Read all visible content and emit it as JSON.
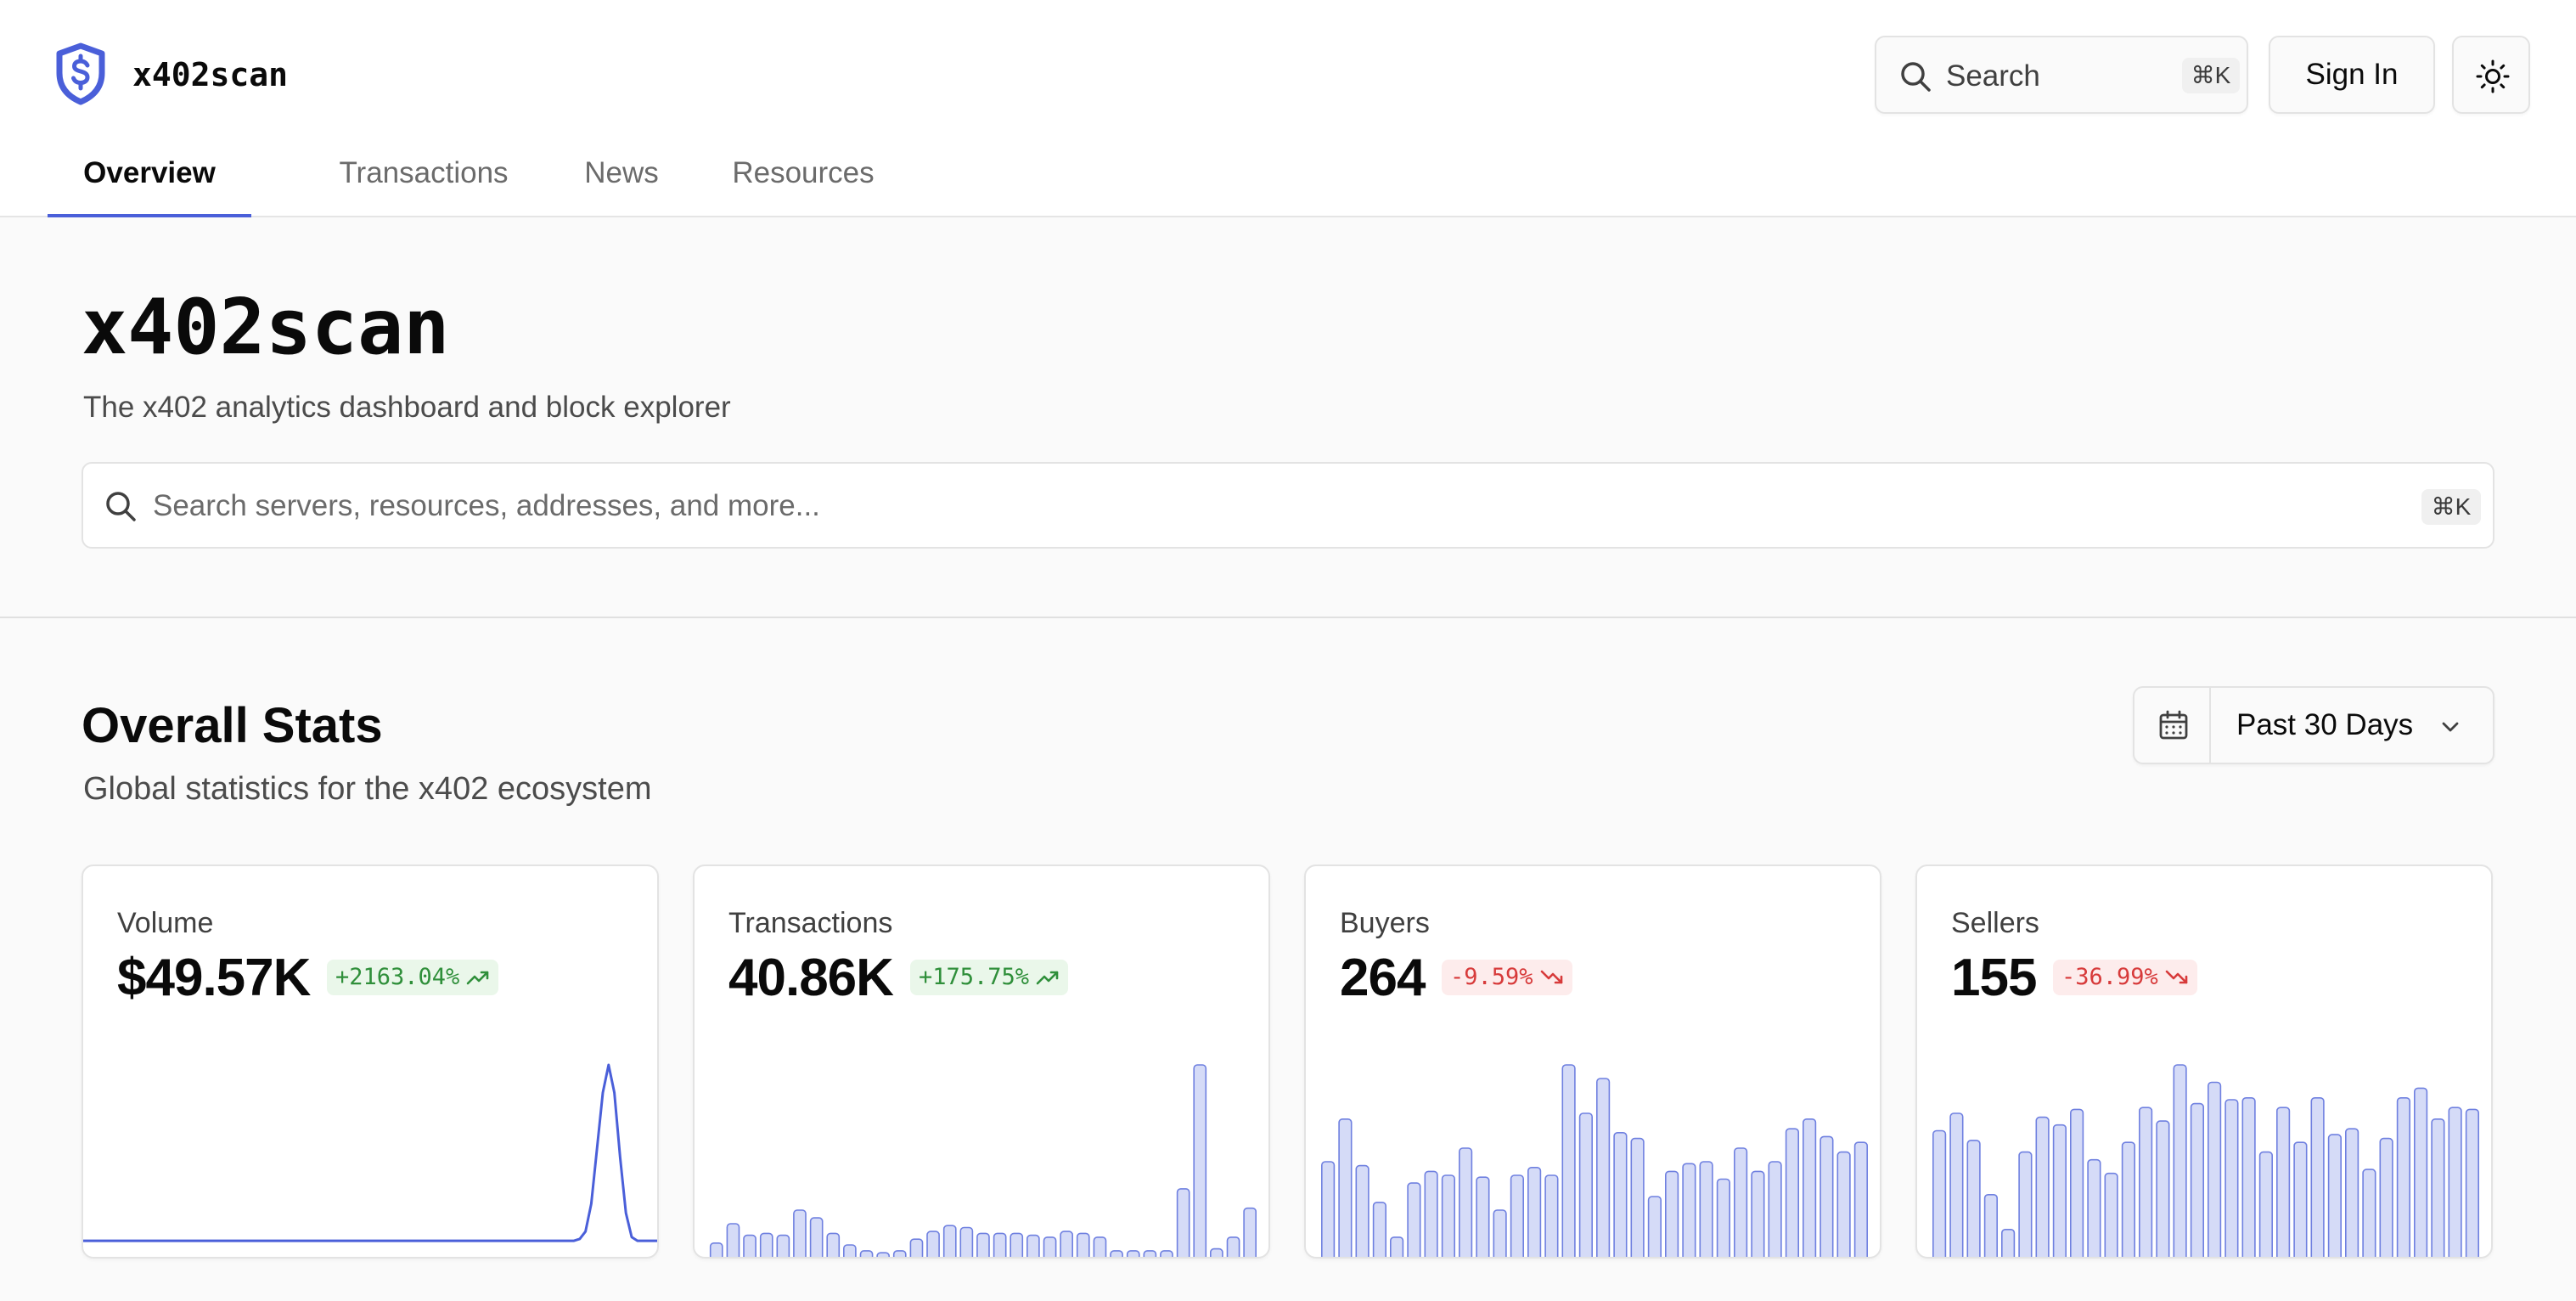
{
  "header": {
    "brand": "x402scan",
    "search_label": "Search",
    "search_shortcut": "⌘K",
    "sign_in": "Sign In",
    "icons": [
      "shield-dollar-icon",
      "search-icon",
      "sun-icon"
    ]
  },
  "nav": {
    "tabs": [
      {
        "label": "Overview",
        "active": true
      },
      {
        "label": "Transactions",
        "active": false
      },
      {
        "label": "News",
        "active": false
      },
      {
        "label": "Resources",
        "active": false
      }
    ]
  },
  "hero": {
    "title": "x402scan",
    "subtitle": "The x402 analytics dashboard and block explorer",
    "search_placeholder": "Search servers, resources, addresses, and more...",
    "search_shortcut": "⌘K"
  },
  "stats": {
    "title": "Overall Stats",
    "subtitle": "Global statistics for the x402 ecosystem",
    "range": "Past 30 Days",
    "cards": [
      {
        "label": "Volume",
        "value": "$49.57K",
        "change": "+2163.04%",
        "trend": "up"
      },
      {
        "label": "Transactions",
        "value": "40.86K",
        "change": "+175.75%",
        "trend": "up"
      },
      {
        "label": "Buyers",
        "value": "264",
        "change": "-9.59%",
        "trend": "down"
      },
      {
        "label": "Sellers",
        "value": "155",
        "change": "-36.99%",
        "trend": "down"
      }
    ]
  },
  "colors": {
    "accent": "#4a5fd9",
    "bar_fill": "#d5dbf7",
    "bar_stroke": "#6f80e0",
    "positive": "#2f8f3a",
    "negative": "#d73a3a"
  },
  "chart_data": [
    {
      "type": "line",
      "series": [
        {
          "values": [
            0.05,
            0.05,
            0.05,
            0.05,
            0.05,
            0.05,
            0.05,
            0.05,
            0.05,
            0.05,
            0.05,
            0.05,
            0.05,
            0.05,
            0.05,
            0.05,
            0.05,
            0.05,
            0.05,
            0.05,
            0.05,
            0.05,
            0.05,
            0.05,
            0.05,
            0.05,
            0.05,
            0.05,
            0.05,
            0.05,
            0.05,
            0.05,
            0.05,
            0.05,
            0.05,
            0.05,
            0.05,
            0.05,
            0.05,
            0.05,
            0.05,
            0.05,
            0.05,
            0.05,
            0.05,
            0.05,
            0.05,
            0.05,
            0.05,
            0.05,
            0.05,
            0.05,
            0.05,
            0.05,
            0.05,
            0.05,
            0.05,
            0.05,
            0.05,
            0.05,
            0.05,
            0.05,
            0.05,
            0.05,
            0.05,
            0.05,
            0.05,
            0.05,
            0.05,
            0.05,
            0.05,
            0.05,
            0.05,
            0.05,
            0.05,
            0.05,
            0.05,
            0.05,
            0.05,
            0.05,
            0.05,
            0.05,
            0.05,
            0.05,
            0.05,
            0.05,
            0.06,
            0.1,
            0.25,
            0.55,
            0.85,
            1.0,
            0.85,
            0.5,
            0.2,
            0.07,
            0.05,
            0.05,
            0.05,
            0.05,
            0.05
          ]
        }
      ]
    },
    {
      "type": "bar",
      "series": [
        {
          "values": [
            0.08,
            0.18,
            0.12,
            0.13,
            0.12,
            0.25,
            0.21,
            0.13,
            0.07,
            0.04,
            0.03,
            0.04,
            0.1,
            0.14,
            0.17,
            0.16,
            0.13,
            0.13,
            0.13,
            0.12,
            0.11,
            0.14,
            0.13,
            0.11,
            0.04,
            0.04,
            0.04,
            0.04,
            0.36,
            1.0,
            0.05,
            0.11,
            0.26
          ]
        }
      ]
    },
    {
      "type": "bar",
      "series": [
        {
          "values": [
            0.5,
            0.72,
            0.48,
            0.29,
            0.11,
            0.39,
            0.45,
            0.43,
            0.57,
            0.42,
            0.25,
            0.43,
            0.47,
            0.43,
            1.0,
            0.75,
            0.93,
            0.65,
            0.62,
            0.32,
            0.45,
            0.49,
            0.5,
            0.41,
            0.57,
            0.45,
            0.5,
            0.67,
            0.72,
            0.63,
            0.55,
            0.6
          ]
        }
      ]
    },
    {
      "type": "bar",
      "series": [
        {
          "values": [
            0.66,
            0.75,
            0.61,
            0.33,
            0.15,
            0.55,
            0.73,
            0.69,
            0.77,
            0.51,
            0.44,
            0.6,
            0.78,
            0.71,
            1.0,
            0.8,
            0.91,
            0.82,
            0.83,
            0.55,
            0.78,
            0.6,
            0.83,
            0.64,
            0.67,
            0.46,
            0.62,
            0.83,
            0.88,
            0.72,
            0.78,
            0.77
          ]
        }
      ]
    }
  ]
}
